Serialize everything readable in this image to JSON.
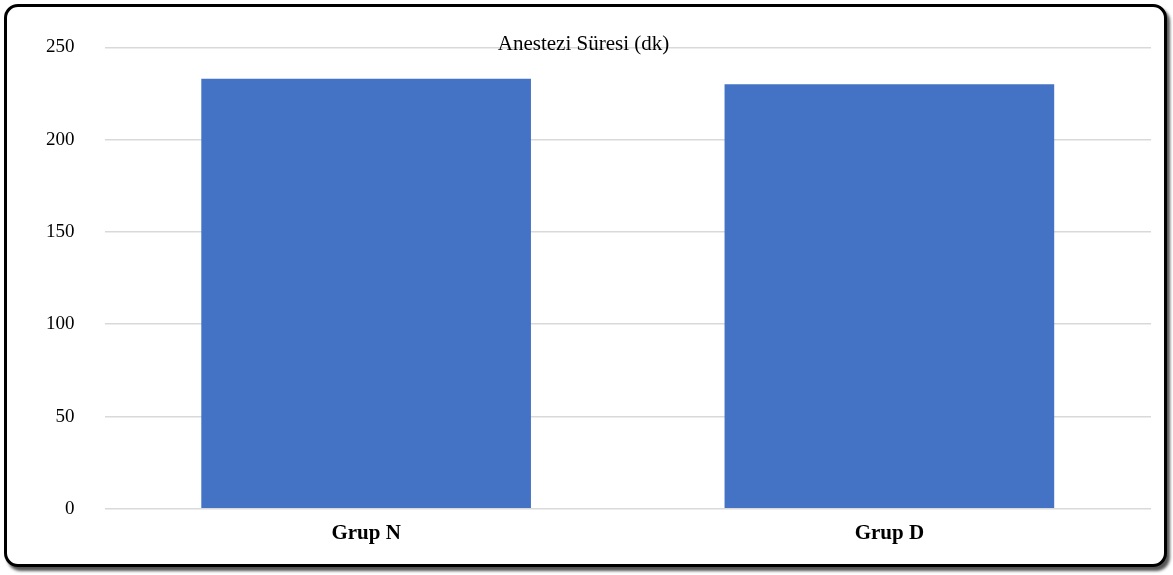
{
  "chart_data": {
    "type": "bar",
    "title": "Anestezi Süresi (dk)",
    "categories": [
      "Grup N",
      "Grup D"
    ],
    "values": [
      233,
      230
    ],
    "color": "#4472c4",
    "ylim": [
      0,
      250
    ],
    "yticks": [
      0,
      50,
      100,
      150,
      200,
      250
    ],
    "grid": "y",
    "legend": false
  }
}
